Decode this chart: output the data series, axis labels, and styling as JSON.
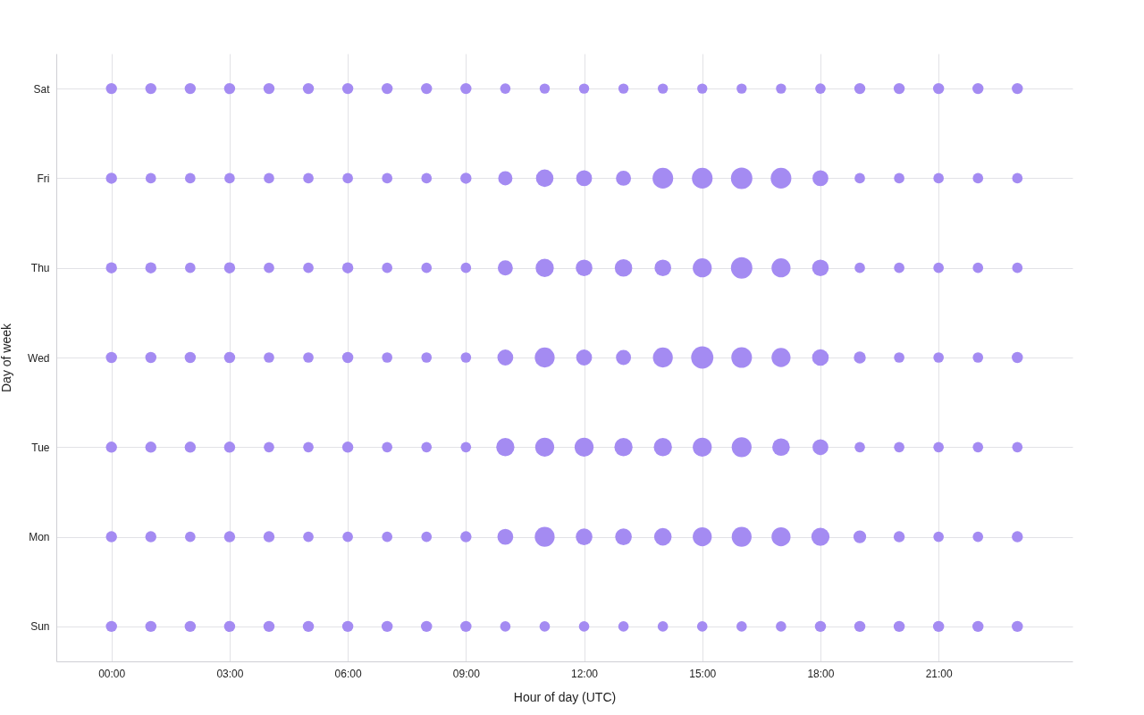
{
  "chart_data": {
    "type": "bubble",
    "orientation": "horizontal",
    "xlabel": "Hour of day (UTC)",
    "ylabel": "Day of week",
    "categories": [
      "Sat",
      "Fri",
      "Thu",
      "Wed",
      "Tue",
      "Mon",
      "Sun"
    ],
    "xlim": [
      -1.4,
      24.4
    ],
    "xticks": [
      {
        "value": 0,
        "label": "00:00"
      },
      {
        "value": 3,
        "label": "03:00"
      },
      {
        "value": 6,
        "label": "06:00"
      },
      {
        "value": 9,
        "label": "09:00"
      },
      {
        "value": 12,
        "label": "12:00"
      },
      {
        "value": 15,
        "label": "15:00"
      },
      {
        "value": 18,
        "label": "18:00"
      },
      {
        "value": 21,
        "label": "21:00"
      }
    ],
    "grid": true,
    "series": [
      {
        "color": "#a48bf2",
        "values": [
          0,
          0,
          0,
          0,
          0,
          0,
          0
        ],
        "sizes": [
          0.25,
          0.25,
          0.25,
          0.25,
          0.25,
          0.25,
          0.25
        ]
      },
      {
        "color": "#a48bf2",
        "values": [
          1,
          1,
          1,
          1,
          1,
          1,
          1
        ],
        "sizes": [
          0.25,
          0.22,
          0.25,
          0.25,
          0.25,
          0.25,
          0.25
        ]
      },
      {
        "color": "#a48bf2",
        "values": [
          2,
          2,
          2,
          2,
          2,
          2,
          2
        ],
        "sizes": [
          0.25,
          0.22,
          0.22,
          0.25,
          0.25,
          0.22,
          0.25
        ]
      },
      {
        "color": "#a48bf2",
        "values": [
          3,
          3,
          3,
          3,
          3,
          3,
          3
        ],
        "sizes": [
          0.25,
          0.22,
          0.25,
          0.25,
          0.25,
          0.25,
          0.25
        ]
      },
      {
        "color": "#a48bf2",
        "values": [
          4,
          4,
          4,
          4,
          4,
          4,
          4
        ],
        "sizes": [
          0.25,
          0.22,
          0.22,
          0.22,
          0.22,
          0.25,
          0.25
        ]
      },
      {
        "color": "#a48bf2",
        "values": [
          5,
          5,
          5,
          5,
          5,
          5,
          5
        ],
        "sizes": [
          0.25,
          0.22,
          0.22,
          0.22,
          0.22,
          0.22,
          0.25
        ]
      },
      {
        "color": "#a48bf2",
        "values": [
          6,
          6,
          6,
          6,
          6,
          6,
          6
        ],
        "sizes": [
          0.25,
          0.22,
          0.25,
          0.25,
          0.25,
          0.22,
          0.25
        ]
      },
      {
        "color": "#a48bf2",
        "values": [
          7,
          7,
          7,
          7,
          7,
          7,
          7
        ],
        "sizes": [
          0.25,
          0.22,
          0.22,
          0.22,
          0.22,
          0.22,
          0.25
        ]
      },
      {
        "color": "#a48bf2",
        "values": [
          8,
          8,
          8,
          8,
          8,
          8,
          8
        ],
        "sizes": [
          0.25,
          0.22,
          0.22,
          0.22,
          0.22,
          0.22,
          0.25
        ]
      },
      {
        "color": "#a48bf2",
        "values": [
          9,
          9,
          9,
          9,
          9,
          9,
          9
        ],
        "sizes": [
          0.25,
          0.25,
          0.22,
          0.22,
          0.22,
          0.25,
          0.25
        ]
      },
      {
        "color": "#a48bf2",
        "values": [
          10,
          10,
          10,
          10,
          10,
          10,
          10
        ],
        "sizes": [
          0.22,
          0.41,
          0.46,
          0.51,
          0.67,
          0.51,
          0.22
        ]
      },
      {
        "color": "#a48bf2",
        "values": [
          11,
          11,
          11,
          11,
          11,
          11,
          11
        ],
        "sizes": [
          0.21,
          0.62,
          0.67,
          0.8,
          0.73,
          0.8,
          0.22
        ]
      },
      {
        "color": "#a48bf2",
        "values": [
          12,
          12,
          12,
          12,
          12,
          12,
          12
        ],
        "sizes": [
          0.21,
          0.51,
          0.56,
          0.51,
          0.73,
          0.56,
          0.22
        ]
      },
      {
        "color": "#a48bf2",
        "values": [
          13,
          13,
          13,
          13,
          13,
          13,
          13
        ],
        "sizes": [
          0.21,
          0.46,
          0.62,
          0.46,
          0.67,
          0.56,
          0.22
        ]
      },
      {
        "color": "#a48bf2",
        "values": [
          14,
          14,
          14,
          14,
          14,
          14,
          14
        ],
        "sizes": [
          0.21,
          0.86,
          0.56,
          0.8,
          0.67,
          0.62,
          0.22
        ]
      },
      {
        "color": "#a48bf2",
        "values": [
          15,
          15,
          15,
          15,
          15,
          15,
          15
        ],
        "sizes": [
          0.21,
          0.86,
          0.73,
          1,
          0.73,
          0.73,
          0.22
        ]
      },
      {
        "color": "#a48bf2",
        "values": [
          16,
          16,
          16,
          16,
          16,
          16,
          16
        ],
        "sizes": [
          0.21,
          0.93,
          0.93,
          0.86,
          0.8,
          0.8,
          0.22
        ]
      },
      {
        "color": "#a48bf2",
        "values": [
          17,
          17,
          17,
          17,
          17,
          17,
          17
        ],
        "sizes": [
          0.21,
          0.86,
          0.73,
          0.73,
          0.62,
          0.73,
          0.22
        ]
      },
      {
        "color": "#a48bf2",
        "values": [
          18,
          18,
          18,
          18,
          18,
          18,
          18
        ],
        "sizes": [
          0.22,
          0.51,
          0.56,
          0.56,
          0.51,
          0.67,
          0.25
        ]
      },
      {
        "color": "#a48bf2",
        "values": [
          19,
          19,
          19,
          19,
          19,
          19,
          19
        ],
        "sizes": [
          0.25,
          0.22,
          0.22,
          0.29,
          0.22,
          0.33,
          0.25
        ]
      },
      {
        "color": "#a48bf2",
        "values": [
          20,
          20,
          20,
          20,
          20,
          20,
          20
        ],
        "sizes": [
          0.25,
          0.22,
          0.22,
          0.22,
          0.22,
          0.25,
          0.25
        ]
      },
      {
        "color": "#a48bf2",
        "values": [
          21,
          21,
          21,
          21,
          21,
          21,
          21
        ],
        "sizes": [
          0.25,
          0.22,
          0.22,
          0.22,
          0.22,
          0.22,
          0.25
        ]
      },
      {
        "color": "#a48bf2",
        "values": [
          22,
          22,
          22,
          22,
          22,
          22,
          22
        ],
        "sizes": [
          0.25,
          0.22,
          0.22,
          0.22,
          0.22,
          0.22,
          0.25
        ]
      },
      {
        "color": "#a48bf2",
        "values": [
          23,
          23,
          23,
          23,
          23,
          23,
          23
        ],
        "sizes": [
          0.25,
          0.22,
          0.22,
          0.25,
          0.22,
          0.25,
          0.25
        ]
      }
    ]
  }
}
